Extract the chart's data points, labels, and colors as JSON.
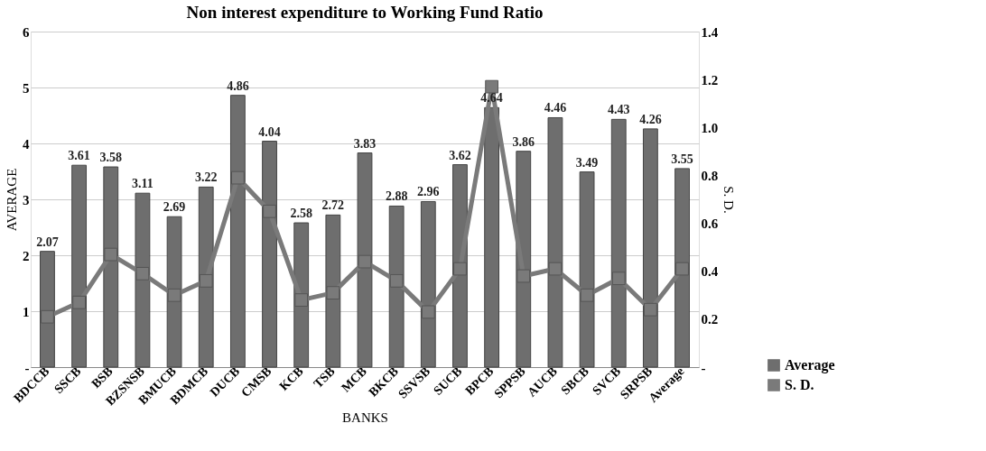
{
  "chart_data": {
    "type": "bar",
    "title": "Non interest expenditure to Working Fund Ratio",
    "xlabel": "BANKS",
    "ylabel": "AVERAGE",
    "y2label": "S. D.",
    "categories": [
      "BDCCB",
      "SSCB",
      "BSB",
      "BZSNSB",
      "BMUCB",
      "BDMCB",
      "DUCB",
      "CMSB",
      "KCB",
      "TSB",
      "MCB",
      "BKCB",
      "SSVSB",
      "SUCB",
      "BPCB",
      "SPPSB",
      "AUCB",
      "SBCB",
      "SVCB",
      "SRPSB",
      "Average"
    ],
    "series": [
      {
        "name": "Average",
        "color": "#6e6e6e",
        "values": [
          2.07,
          3.61,
          3.58,
          3.11,
          2.69,
          3.22,
          4.86,
          4.04,
          2.58,
          2.72,
          3.83,
          2.88,
          2.96,
          3.62,
          4.64,
          3.86,
          4.46,
          3.49,
          4.43,
          4.26,
          3.55
        ],
        "value_labels": [
          "2.07",
          "3.61",
          "3.58",
          "3.11",
          "2.69",
          "3.22",
          "4.86",
          "4.04",
          "2.58",
          "2.72",
          "3.83",
          "2.88",
          "2.96",
          "3.62",
          "4.64",
          "3.86",
          "4.46",
          "3.49",
          "4.43",
          "4.26",
          "3.55"
        ]
      },
      {
        "name": "S. D.",
        "type": "line",
        "axis": "y2",
        "color": "#7a7a7a",
        "marker": "square",
        "values": [
          0.21,
          0.27,
          0.47,
          0.39,
          0.3,
          0.36,
          0.79,
          0.65,
          0.28,
          0.31,
          0.44,
          0.36,
          0.23,
          0.41,
          1.17,
          0.38,
          0.41,
          0.3,
          0.37,
          0.24,
          0.41
        ]
      }
    ],
    "ylim": [
      0,
      6
    ],
    "yticks": [
      {
        "value": 0,
        "label": "-"
      },
      1,
      2,
      3,
      4,
      5,
      6
    ],
    "y2lim": [
      0,
      1.4
    ],
    "y2ticks": [
      {
        "value": 0,
        "label": "-"
      },
      0.2,
      0.4,
      0.6,
      0.8,
      {
        "value": 1,
        "label": "1.0"
      },
      1.2,
      1.4
    ],
    "grid": "y",
    "legend": "bottom right"
  }
}
